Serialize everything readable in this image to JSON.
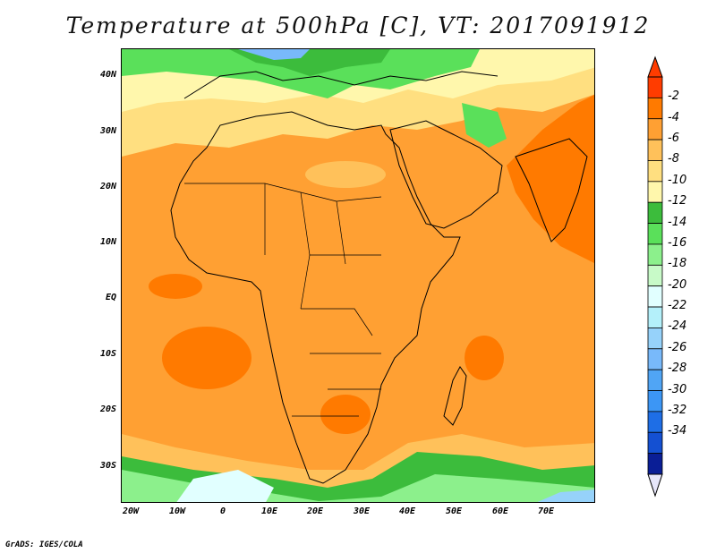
{
  "title": "Temperature at 500hPa [C], VT: 2017091912",
  "credit": "GrADS: IGES/COLA",
  "map": {
    "region": "Africa and surrounding oceans",
    "field": "temperature_500hPa",
    "lon_range": [
      -23,
      80
    ],
    "lat_range": [
      -37,
      45
    ],
    "lat_ticks": [
      {
        "value": 40,
        "label": "40N"
      },
      {
        "value": 30,
        "label": "30N"
      },
      {
        "value": 20,
        "label": "20N"
      },
      {
        "value": 10,
        "label": "10N"
      },
      {
        "value": 0,
        "label": "EQ"
      },
      {
        "value": -10,
        "label": "10S"
      },
      {
        "value": -20,
        "label": "20S"
      },
      {
        "value": -30,
        "label": "30S"
      }
    ],
    "lon_ticks": [
      {
        "value": -20,
        "label": "20W"
      },
      {
        "value": -10,
        "label": "10W"
      },
      {
        "value": 0,
        "label": "0"
      },
      {
        "value": 10,
        "label": "10E"
      },
      {
        "value": 20,
        "label": "20E"
      },
      {
        "value": 30,
        "label": "30E"
      },
      {
        "value": 40,
        "label": "40E"
      },
      {
        "value": 50,
        "label": "50E"
      },
      {
        "value": 60,
        "label": "60E"
      },
      {
        "value": 70,
        "label": "70E"
      }
    ]
  },
  "colorbar": {
    "labels": [
      "-2",
      "-4",
      "-6",
      "-8",
      "-10",
      "-12",
      "-14",
      "-16",
      "-18",
      "-20",
      "-22",
      "-24",
      "-26",
      "-28",
      "-30",
      "-32",
      "-34"
    ],
    "colors": [
      "#ff3c00",
      "#ff7a00",
      "#ffa033",
      "#ffc15a",
      "#ffdf80",
      "#fff7ac",
      "#3cbc3c",
      "#5ae05a",
      "#8cf08c",
      "#c8fac8",
      "#e1ffff",
      "#b4f0fa",
      "#96d2fa",
      "#78b9fa",
      "#50a5f5",
      "#3c96f5",
      "#1e6ee6",
      "#1450d2",
      "#0a1e96"
    ],
    "over_color": "#ff3c00",
    "under_color": "#e6e6fa"
  }
}
